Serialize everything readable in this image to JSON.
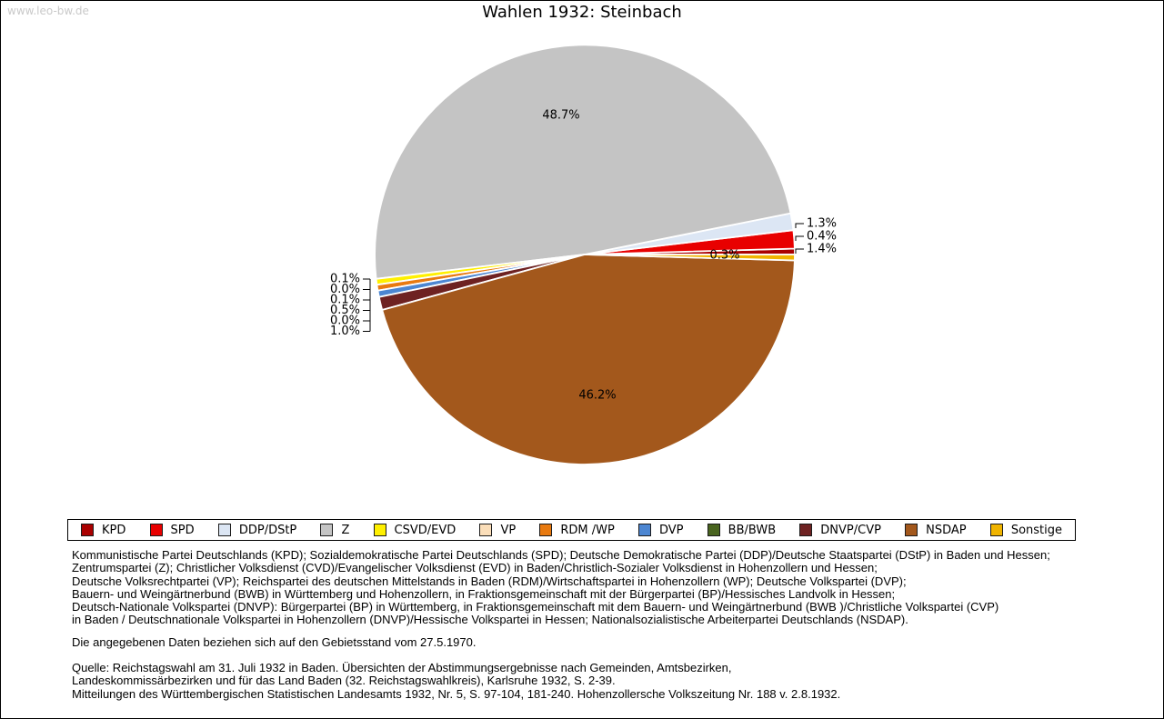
{
  "watermark": "www.leo-bw.de",
  "title": "Wahlen 1932: Steinbach",
  "chart_data": {
    "type": "pie",
    "title": "Wahlen 1932: Steinbach",
    "unit": "percent",
    "legend_position": "bottom",
    "start_angle_deg": 0,
    "direction": "counterclockwise",
    "series": [
      {
        "party": "KPD",
        "value": 0.4,
        "color": "#AA0000"
      },
      {
        "party": "SPD",
        "value": 1.4,
        "color": "#E80000"
      },
      {
        "party": "DDP/DStP",
        "value": 1.3,
        "color": "#DCE6F4"
      },
      {
        "party": "Z",
        "value": 48.7,
        "color": "#C4C4C4"
      },
      {
        "party": "CSVD/EVD",
        "value": 0.1,
        "color": "#FFF000"
      },
      {
        "party": "VP",
        "value": 0.0,
        "color": "#FBDEB9"
      },
      {
        "party": "RDM /WP",
        "value": 0.1,
        "color": "#E87A10"
      },
      {
        "party": "DVP",
        "value": 0.5,
        "color": "#4C86D2"
      },
      {
        "party": "BB/BWB",
        "value": 0.0,
        "color": "#49641F"
      },
      {
        "party": "DNVP/CVP",
        "value": 1.0,
        "color": "#6E2222"
      },
      {
        "party": "NSDAP",
        "value": 46.2,
        "color": "#A3581C"
      },
      {
        "party": "Sonstige",
        "value": 0.3,
        "color": "#F0B400"
      }
    ]
  },
  "footnotes": {
    "party_definitions": [
      "Kommunistische Partei Deutschlands (KPD); Sozialdemokratische Partei Deutschlands (SPD); Deutsche Demokratische Partei (DDP)/Deutsche Staatspartei (DStP) in Baden und Hessen;",
      "Zentrumspartei (Z); Christlicher Volksdienst (CVD)/Evangelischer Volksdienst (EVD) in Baden/Christlich-Sozialer Volksdienst in Hohenzollern und Hessen;",
      "Deutsche Volksrechtpartei (VP); Reichspartei des deutschen Mittelstands in Baden (RDM)/Wirtschaftspartei in Hohenzollern (WP); Deutsche Volkspartei (DVP);",
      "Bauern- und Weingärtnerbund (BWB) in Württemberg und Hohenzollern, in Fraktionsgemeinschaft mit der Bürgerpartei (BP)/Hessisches Landvolk in Hessen;",
      "Deutsch-Nationale Volkspartei (DNVP): Bürgerpartei (BP) in Württemberg, in Fraktionsgemeinschaft mit dem Bauern- und Weingärtnerbund (BWB )/Christliche Volkspartei (CVP)",
      "in Baden / Deutschnationale Volkspartei in Hohenzollern (DNVP)/Hessische Volkspartei in Hessen; Nationalsozialistische Arbeiterpartei Deutschlands (NSDAP)."
    ],
    "geo_note": "Die angegebenen Daten beziehen sich auf den Gebietsstand vom 27.5.1970.",
    "source_lines": [
      "Quelle: Reichstagswahl am 31. Juli 1932 in Baden. Übersichten der Abstimmungsergebnisse nach Gemeinden, Amtsbezirken,",
      "Landeskommissärbezirken und für das Land Baden (32. Reichstagswahlkreis), Karlsruhe 1932, S. 2-39.",
      "Mitteilungen des Württembergischen Statistischen Landesamts 1932, Nr. 5, S. 97-104, 181-240. Hohenzollersche Volkszeitung Nr. 188 v. 2.8.1932."
    ]
  }
}
